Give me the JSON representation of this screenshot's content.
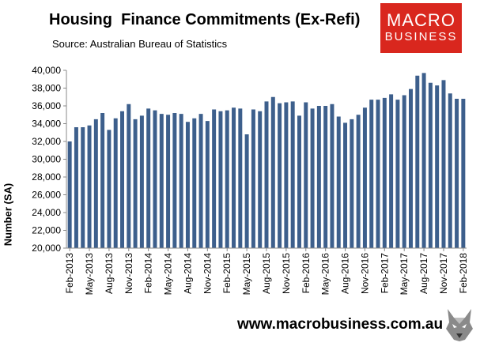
{
  "header": {
    "title": "Housing  Finance Commitments (Ex-Refi)",
    "subtitle": "Source: Australian Bureau of Statistics"
  },
  "logo": {
    "line1": "MACRO",
    "line2": "BUSINESS",
    "color": "#d9271e"
  },
  "footer": {
    "website": "www.macrobusiness.com.au",
    "mascot_icon": "wolf-icon"
  },
  "chart_data": {
    "type": "bar",
    "ylabel": "Number (SA)",
    "ylim": [
      20000,
      40000
    ],
    "yticks": [
      "20,000",
      "22,000",
      "24,000",
      "26,000",
      "28,000",
      "30,000",
      "32,000",
      "34,000",
      "36,000",
      "38,000",
      "40,000"
    ],
    "grid": false,
    "legend": "none",
    "bar_color": "#3d5f8c",
    "xtick_labels": [
      "Feb-2013",
      "May-2013",
      "Aug-2013",
      "Nov-2013",
      "Feb-2014",
      "May-2014",
      "Aug-2014",
      "Nov-2014",
      "Feb-2015",
      "May-2015",
      "Aug-2015",
      "Nov-2015",
      "Feb-2016",
      "May-2016",
      "Aug-2016",
      "Nov-2016",
      "Feb-2017",
      "May-2017",
      "Aug-2017",
      "Nov-2017",
      "Feb-2018"
    ],
    "categories": [
      "Feb-2013",
      "Mar-2013",
      "Apr-2013",
      "May-2013",
      "Jun-2013",
      "Jul-2013",
      "Aug-2013",
      "Sep-2013",
      "Oct-2013",
      "Nov-2013",
      "Dec-2013",
      "Jan-2014",
      "Feb-2014",
      "Mar-2014",
      "Apr-2014",
      "May-2014",
      "Jun-2014",
      "Jul-2014",
      "Aug-2014",
      "Sep-2014",
      "Oct-2014",
      "Nov-2014",
      "Dec-2014",
      "Jan-2015",
      "Feb-2015",
      "Mar-2015",
      "Apr-2015",
      "May-2015",
      "Jun-2015",
      "Jul-2015",
      "Aug-2015",
      "Sep-2015",
      "Oct-2015",
      "Nov-2015",
      "Dec-2015",
      "Jan-2016",
      "Feb-2016",
      "Mar-2016",
      "Apr-2016",
      "May-2016",
      "Jun-2016",
      "Jul-2016",
      "Aug-2016",
      "Sep-2016",
      "Oct-2016",
      "Nov-2016",
      "Dec-2016",
      "Jan-2017",
      "Feb-2017",
      "Mar-2017",
      "Apr-2017",
      "May-2017",
      "Jun-2017",
      "Jul-2017",
      "Aug-2017",
      "Sep-2017",
      "Oct-2017",
      "Nov-2017",
      "Dec-2017",
      "Jan-2018",
      "Feb-2018"
    ],
    "values": [
      32000,
      33600,
      33600,
      33800,
      34500,
      35200,
      33300,
      34600,
      35400,
      36200,
      34500,
      34900,
      35700,
      35500,
      35100,
      35000,
      35200,
      35100,
      34200,
      34600,
      35100,
      34300,
      35600,
      35400,
      35500,
      35800,
      35700,
      32800,
      35600,
      35400,
      36500,
      37000,
      36300,
      36400,
      36500,
      34900,
      36400,
      35700,
      36000,
      36000,
      36200,
      34800,
      34100,
      34500,
      35000,
      35800,
      36700,
      36700,
      36900,
      37300,
      36700,
      37200,
      37900,
      39400,
      39700,
      38600,
      38300,
      38900,
      37400,
      36800,
      36800
    ]
  }
}
